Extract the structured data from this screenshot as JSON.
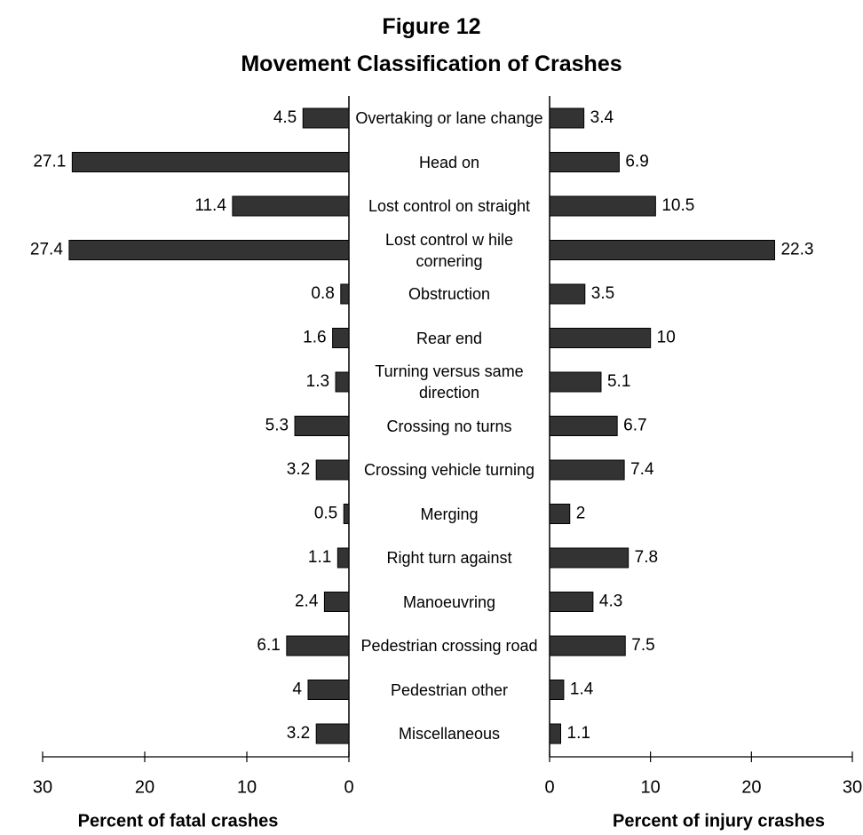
{
  "chart_data": {
    "type": "bar",
    "orientation": "horizontal",
    "title": "Figure 12",
    "subtitle": "Movement Classification of Crashes",
    "categories": [
      "Overtaking or lane change",
      "Head on",
      "Lost control on straight",
      "Lost control w hile cornering",
      "Obstruction",
      "Rear end",
      "Turning versus same direction",
      "Crossing no turns",
      "Crossing vehicle turning",
      "Merging",
      "Right turn against",
      "Manoeuvring",
      "Pedestrian crossing road",
      "Pedestrian other",
      "Miscellaneous"
    ],
    "series": [
      {
        "name": "Percent of fatal crashes",
        "color": "#333333",
        "xlim": [
          0,
          30
        ],
        "xticks": [
          0,
          10,
          20,
          30
        ],
        "values": [
          4.5,
          27.1,
          11.4,
          27.4,
          0.8,
          1.6,
          1.3,
          5.3,
          3.2,
          0.5,
          1.1,
          2.4,
          6.1,
          4,
          3.2
        ]
      },
      {
        "name": "Percent of injury crashes",
        "color": "#333333",
        "xlim": [
          0,
          30
        ],
        "xticks": [
          0,
          10,
          20,
          30
        ],
        "values": [
          3.4,
          6.9,
          10.5,
          22.3,
          3.5,
          10,
          5.1,
          6.7,
          7.4,
          2,
          7.8,
          4.3,
          7.5,
          1.4,
          1.1
        ]
      }
    ]
  }
}
